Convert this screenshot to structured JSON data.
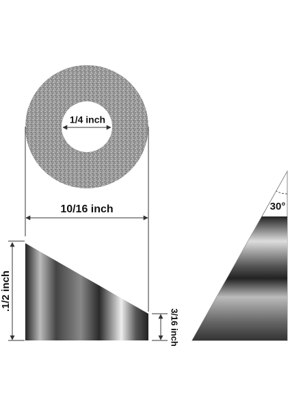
{
  "labels": {
    "inner_diameter": "1/4 inch",
    "outer_diameter": "10/16 inch",
    "tall_height": ".1/2 inch",
    "short_height": "3/16 inch",
    "angle": "30°"
  }
}
